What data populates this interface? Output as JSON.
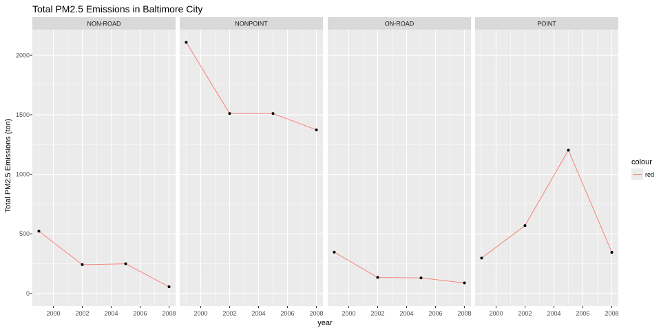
{
  "chart_data": {
    "type": "line",
    "title": "Total PM2.5 Emissions in Baltimore City",
    "xlabel": "year",
    "ylabel": "Total PM2.5 Emissions (ton)",
    "x_ticks": [
      2000,
      2002,
      2004,
      2006,
      2008
    ],
    "y_ticks": [
      0,
      500,
      1000,
      1500,
      2000
    ],
    "xlim": [
      1998.55,
      2008.45
    ],
    "ylim": [
      -105,
      2215
    ],
    "grid": true,
    "legend": {
      "title": "colour",
      "position": "right",
      "entries": [
        {
          "label": "red",
          "color": "#F8766D"
        }
      ]
    },
    "line_color": "#F8766D",
    "point_color": "#000000",
    "panel_background": "#EBEBEB",
    "strip_background": "#D9D9D9",
    "panels": [
      {
        "name": "NON-ROAD",
        "x": [
          1999,
          2002,
          2005,
          2008
        ],
        "y": [
          522.9,
          241.8,
          248.9,
          55.8
        ]
      },
      {
        "name": "NONPOINT",
        "x": [
          1999,
          2002,
          2005,
          2008
        ],
        "y": [
          2107.6,
          1510.0,
          1510.0,
          1373.2
        ]
      },
      {
        "name": "ON-ROAD",
        "x": [
          1999,
          2002,
          2005,
          2008
        ],
        "y": [
          346.8,
          134.3,
          130.4,
          88.3
        ]
      },
      {
        "name": "POINT",
        "x": [
          1999,
          2002,
          2005,
          2008
        ],
        "y": [
          296.8,
          569.3,
          1202.5,
          344.98
        ]
      }
    ]
  }
}
